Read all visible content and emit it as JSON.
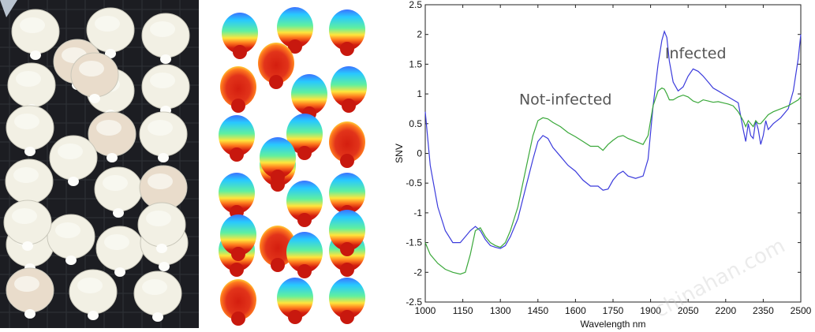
{
  "panels": {
    "photo": {
      "kernel_count": 24
    },
    "heatmap": {
      "kernel_count": 24,
      "colormap": [
        "#1f3cff",
        "#19c8ff",
        "#6fff6f",
        "#ffe63c",
        "#ff6a1a",
        "#d41e0f"
      ]
    }
  },
  "watermark": "chinahan.com",
  "chart_data": {
    "type": "line",
    "xlabel": "Wavelength nm",
    "ylabel": "SNV",
    "xlim": [
      1000,
      2500
    ],
    "ylim": [
      -2.5,
      2.5
    ],
    "x_ticks": [
      1000,
      1150,
      1300,
      1450,
      1600,
      1750,
      1900,
      2050,
      2200,
      2350,
      2500
    ],
    "y_ticks": [
      -2.5,
      -2,
      -1.5,
      -1,
      -0.5,
      0,
      0.5,
      1,
      1.5,
      2,
      2.5
    ],
    "grid": false,
    "legend": "none",
    "annotations": [
      {
        "text": "Infected",
        "x": 2080,
        "y": 1.6
      },
      {
        "text": "Not-infected",
        "x": 1560,
        "y": 0.82
      }
    ],
    "series": [
      {
        "color": "#3b3bdc",
        "x": [
          1000,
          1020,
          1050,
          1080,
          1110,
          1140,
          1160,
          1180,
          1200,
          1220,
          1240,
          1260,
          1280,
          1300,
          1320,
          1340,
          1370,
          1400,
          1430,
          1450,
          1470,
          1490,
          1510,
          1540,
          1570,
          1600,
          1630,
          1660,
          1690,
          1710,
          1730,
          1750,
          1770,
          1790,
          1810,
          1840,
          1870,
          1890,
          1910,
          1930,
          1945,
          1955,
          1965,
          1975,
          1990,
          2010,
          2030,
          2050,
          2070,
          2090,
          2110,
          2130,
          2150,
          2170,
          2190,
          2210,
          2230,
          2250,
          2270,
          2280,
          2290,
          2300,
          2310,
          2320,
          2330,
          2340,
          2350,
          2360,
          2370,
          2390,
          2420,
          2450,
          2470,
          2490,
          2500
        ],
        "y": [
          0.7,
          -0.2,
          -0.9,
          -1.3,
          -1.5,
          -1.5,
          -1.4,
          -1.3,
          -1.23,
          -1.3,
          -1.45,
          -1.55,
          -1.58,
          -1.6,
          -1.55,
          -1.4,
          -1.1,
          -0.6,
          -0.1,
          0.2,
          0.3,
          0.25,
          0.1,
          -0.05,
          -0.2,
          -0.3,
          -0.45,
          -0.55,
          -0.55,
          -0.62,
          -0.6,
          -0.45,
          -0.35,
          -0.3,
          -0.38,
          -0.42,
          -0.38,
          -0.1,
          0.8,
          1.5,
          1.9,
          2.05,
          1.95,
          1.55,
          1.2,
          1.05,
          1.12,
          1.3,
          1.42,
          1.38,
          1.3,
          1.2,
          1.1,
          1.05,
          1.0,
          0.95,
          0.9,
          0.85,
          0.4,
          0.2,
          0.5,
          0.3,
          0.25,
          0.55,
          0.4,
          0.15,
          0.3,
          0.55,
          0.4,
          0.5,
          0.6,
          0.75,
          1.05,
          1.6,
          2.0
        ]
      },
      {
        "color": "#3aa83a",
        "x": [
          1000,
          1020,
          1050,
          1080,
          1110,
          1140,
          1160,
          1180,
          1200,
          1220,
          1240,
          1260,
          1280,
          1300,
          1320,
          1340,
          1370,
          1400,
          1430,
          1450,
          1470,
          1490,
          1510,
          1540,
          1570,
          1600,
          1630,
          1660,
          1690,
          1710,
          1730,
          1750,
          1770,
          1790,
          1810,
          1840,
          1870,
          1890,
          1910,
          1930,
          1945,
          1955,
          1965,
          1975,
          1990,
          2010,
          2030,
          2050,
          2070,
          2090,
          2110,
          2130,
          2150,
          2170,
          2190,
          2210,
          2230,
          2250,
          2270,
          2280,
          2290,
          2300,
          2310,
          2320,
          2330,
          2340,
          2350,
          2360,
          2370,
          2390,
          2420,
          2450,
          2470,
          2490,
          2500
        ],
        "y": [
          -1.5,
          -1.7,
          -1.85,
          -1.95,
          -2.0,
          -2.03,
          -2.0,
          -1.7,
          -1.3,
          -1.25,
          -1.4,
          -1.5,
          -1.55,
          -1.58,
          -1.5,
          -1.3,
          -0.9,
          -0.3,
          0.3,
          0.55,
          0.6,
          0.58,
          0.52,
          0.45,
          0.35,
          0.28,
          0.2,
          0.12,
          0.12,
          0.05,
          0.15,
          0.22,
          0.28,
          0.3,
          0.25,
          0.2,
          0.15,
          0.3,
          0.8,
          1.05,
          1.1,
          1.08,
          1.0,
          0.9,
          0.9,
          0.95,
          0.98,
          0.95,
          0.88,
          0.85,
          0.9,
          0.88,
          0.86,
          0.87,
          0.85,
          0.83,
          0.8,
          0.7,
          0.55,
          0.45,
          0.55,
          0.5,
          0.45,
          0.55,
          0.5,
          0.5,
          0.55,
          0.6,
          0.65,
          0.7,
          0.75,
          0.8,
          0.85,
          0.9,
          0.95
        ]
      }
    ]
  }
}
